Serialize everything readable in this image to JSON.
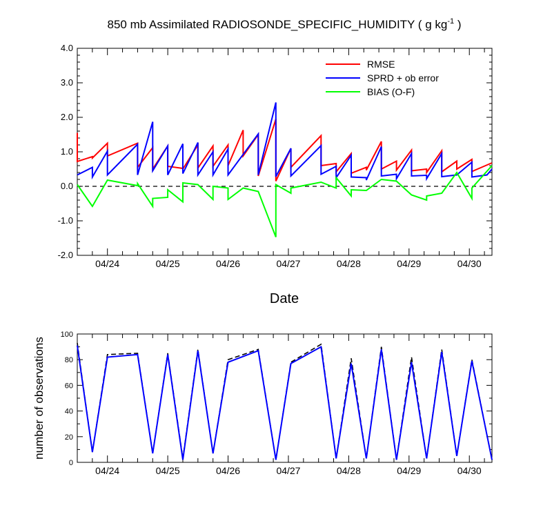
{
  "chart_data": [
    {
      "type": "line",
      "title": "850 mb Assimilated RADIOSONDE_SPECIFIC_HUMIDITY ( g kg",
      "title_units_sup": "-1",
      "title_suffix": " )",
      "xlabel": "Date",
      "ylabel": "",
      "xlim": [
        0,
        165
      ],
      "ylim": [
        -2.0,
        4.0
      ],
      "y_ticks": [
        -2.0,
        -1.0,
        0.0,
        1.0,
        2.0,
        3.0,
        4.0
      ],
      "y_tick_labels": [
        "-2.0",
        "-1.0",
        "0.0",
        "1.0",
        "2.0",
        "3.0",
        "4.0"
      ],
      "x_ticks": [
        12,
        36,
        60,
        84,
        108,
        132,
        156
      ],
      "x_tick_labels": [
        "04/24",
        "04/25",
        "04/26",
        "04/27",
        "04/28",
        "04/29",
        "04/30"
      ],
      "zero_line": 0.0,
      "legend": [
        "RMSE",
        "SPRD + ob error",
        "BIAS (O-F)"
      ],
      "series": [
        {
          "name": "RMSE",
          "color": "#ff0000",
          "points": [
            [
              0,
              1.55
            ],
            [
              0,
              0.72
            ],
            [
              6,
              0.86
            ],
            [
              6,
              0.82
            ],
            [
              12,
              1.25
            ],
            [
              12,
              0.88
            ],
            [
              24,
              1.25
            ],
            [
              24,
              0.55
            ],
            [
              30,
              1.12
            ],
            [
              30,
              0.5
            ],
            [
              36,
              1.17
            ],
            [
              36,
              0.58
            ],
            [
              42,
              0.52
            ],
            [
              42,
              0.5
            ],
            [
              48,
              1.2
            ],
            [
              48,
              0.53
            ],
            [
              54,
              1.17
            ],
            [
              54,
              0.58
            ],
            [
              60,
              1.2
            ],
            [
              60,
              0.6
            ],
            [
              66,
              1.63
            ],
            [
              66,
              0.88
            ],
            [
              72,
              1.5
            ],
            [
              72,
              0.3
            ],
            [
              79,
              1.95
            ],
            [
              79,
              0.15
            ],
            [
              85,
              1.1
            ],
            [
              85,
              0.55
            ],
            [
              97,
              1.47
            ],
            [
              97,
              0.6
            ],
            [
              103,
              0.66
            ],
            [
              103,
              0.42
            ],
            [
              109,
              0.95
            ],
            [
              109,
              0.38
            ],
            [
              115,
              0.55
            ],
            [
              115,
              0.47
            ],
            [
              121,
              1.3
            ],
            [
              121,
              0.5
            ],
            [
              127,
              0.73
            ],
            [
              127,
              0.47
            ],
            [
              133,
              1.05
            ],
            [
              133,
              0.45
            ],
            [
              139,
              0.5
            ],
            [
              139,
              0.4
            ],
            [
              145,
              1.03
            ],
            [
              145,
              0.42
            ],
            [
              151,
              0.73
            ],
            [
              151,
              0.5
            ],
            [
              157,
              0.78
            ],
            [
              157,
              0.43
            ],
            [
              165,
              0.68
            ]
          ]
        },
        {
          "name": "SPRD + ob error",
          "color": "#0000ff",
          "points": [
            [
              0,
              0.33
            ],
            [
              6,
              0.55
            ],
            [
              6,
              0.27
            ],
            [
              12,
              1.02
            ],
            [
              12,
              0.33
            ],
            [
              24,
              1.22
            ],
            [
              24,
              0.33
            ],
            [
              30,
              1.87
            ],
            [
              30,
              0.45
            ],
            [
              36,
              1.17
            ],
            [
              36,
              0.33
            ],
            [
              42,
              1.23
            ],
            [
              42,
              0.37
            ],
            [
              48,
              1.27
            ],
            [
              48,
              0.33
            ],
            [
              54,
              1.0
            ],
            [
              54,
              0.33
            ],
            [
              60,
              1.08
            ],
            [
              60,
              0.33
            ],
            [
              72,
              1.52
            ],
            [
              72,
              0.33
            ],
            [
              79,
              2.43
            ],
            [
              79,
              0.28
            ],
            [
              85,
              1.1
            ],
            [
              85,
              0.3
            ],
            [
              97,
              1.18
            ],
            [
              97,
              0.35
            ],
            [
              103,
              0.58
            ],
            [
              103,
              0.25
            ],
            [
              109,
              0.9
            ],
            [
              109,
              0.27
            ],
            [
              115,
              0.25
            ],
            [
              115,
              0.18
            ],
            [
              121,
              1.15
            ],
            [
              121,
              0.3
            ],
            [
              127,
              0.35
            ],
            [
              127,
              0.22
            ],
            [
              133,
              0.95
            ],
            [
              133,
              0.3
            ],
            [
              139,
              0.32
            ],
            [
              139,
              0.22
            ],
            [
              145,
              0.95
            ],
            [
              145,
              0.28
            ],
            [
              151,
              0.33
            ],
            [
              151,
              0.33
            ],
            [
              157,
              0.7
            ],
            [
              157,
              0.27
            ],
            [
              163,
              0.33
            ],
            [
              165,
              0.5
            ]
          ]
        },
        {
          "name": "BIAS (O-F)",
          "color": "#00ff00",
          "points": [
            [
              0,
              0.05
            ],
            [
              6,
              -0.58
            ],
            [
              12,
              0.18
            ],
            [
              24,
              0.02
            ],
            [
              24,
              0.08
            ],
            [
              30,
              -0.58
            ],
            [
              30,
              -0.35
            ],
            [
              36,
              -0.32
            ],
            [
              36,
              -0.1
            ],
            [
              42,
              -0.45
            ],
            [
              42,
              0.1
            ],
            [
              48,
              0.05
            ],
            [
              54,
              -0.38
            ],
            [
              54,
              0.0
            ],
            [
              60,
              -0.05
            ],
            [
              60,
              -0.38
            ],
            [
              66,
              -0.05
            ],
            [
              72,
              -0.15
            ],
            [
              79,
              -1.47
            ],
            [
              79,
              0.05
            ],
            [
              85,
              -0.2
            ],
            [
              85,
              -0.05
            ],
            [
              97,
              0.12
            ],
            [
              103,
              -0.05
            ],
            [
              103,
              0.25
            ],
            [
              109,
              -0.28
            ],
            [
              109,
              -0.1
            ],
            [
              115,
              -0.12
            ],
            [
              121,
              0.2
            ],
            [
              127,
              0.15
            ],
            [
              133,
              -0.25
            ],
            [
              139,
              -0.4
            ],
            [
              139,
              -0.28
            ],
            [
              145,
              -0.2
            ],
            [
              151,
              0.4
            ],
            [
              157,
              -0.35
            ],
            [
              157,
              -0.05
            ],
            [
              165,
              0.6
            ]
          ]
        }
      ]
    },
    {
      "type": "line",
      "title": "",
      "xlabel": "",
      "ylabel": "number of observations",
      "xlim": [
        0,
        165
      ],
      "ylim": [
        0,
        100
      ],
      "y_ticks": [
        0,
        20,
        40,
        60,
        80,
        100
      ],
      "y_tick_labels": [
        "0",
        "20",
        "40",
        "60",
        "80",
        "100"
      ],
      "x_ticks": [
        12,
        36,
        60,
        84,
        108,
        132,
        156
      ],
      "x_tick_labels": [
        "04/24",
        "04/25",
        "04/26",
        "04/27",
        "04/28",
        "04/29",
        "04/30"
      ],
      "series": [
        {
          "name": "observations (dashed)",
          "color": "#000000",
          "dashed": true,
          "points": [
            [
              0,
              93
            ],
            [
              6,
              8
            ],
            [
              12,
              84
            ],
            [
              24,
              85
            ],
            [
              30,
              7
            ],
            [
              36,
              85
            ],
            [
              42,
              3
            ],
            [
              48,
              88
            ],
            [
              54,
              7
            ],
            [
              60,
              80
            ],
            [
              72,
              88
            ],
            [
              79,
              2
            ],
            [
              85,
              78
            ],
            [
              97,
              92
            ],
            [
              103,
              3
            ],
            [
              109,
              81
            ],
            [
              115,
              3
            ],
            [
              121,
              90
            ],
            [
              127,
              2
            ],
            [
              133,
              82
            ],
            [
              139,
              3
            ],
            [
              145,
              88
            ],
            [
              151,
              5
            ],
            [
              157,
              80
            ],
            [
              165,
              2
            ]
          ]
        },
        {
          "name": "observations (solid)",
          "color": "#0000ff",
          "dashed": false,
          "points": [
            [
              0,
              91
            ],
            [
              6,
              8
            ],
            [
              12,
              82
            ],
            [
              24,
              84
            ],
            [
              30,
              7
            ],
            [
              36,
              84
            ],
            [
              42,
              2
            ],
            [
              48,
              87
            ],
            [
              54,
              7
            ],
            [
              60,
              78
            ],
            [
              72,
              87
            ],
            [
              79,
              2
            ],
            [
              85,
              77
            ],
            [
              97,
              90
            ],
            [
              103,
              3
            ],
            [
              109,
              77
            ],
            [
              115,
              3
            ],
            [
              121,
              88
            ],
            [
              127,
              2
            ],
            [
              133,
              78
            ],
            [
              139,
              3
            ],
            [
              145,
              86
            ],
            [
              151,
              5
            ],
            [
              157,
              79
            ],
            [
              165,
              2
            ]
          ]
        }
      ]
    }
  ]
}
